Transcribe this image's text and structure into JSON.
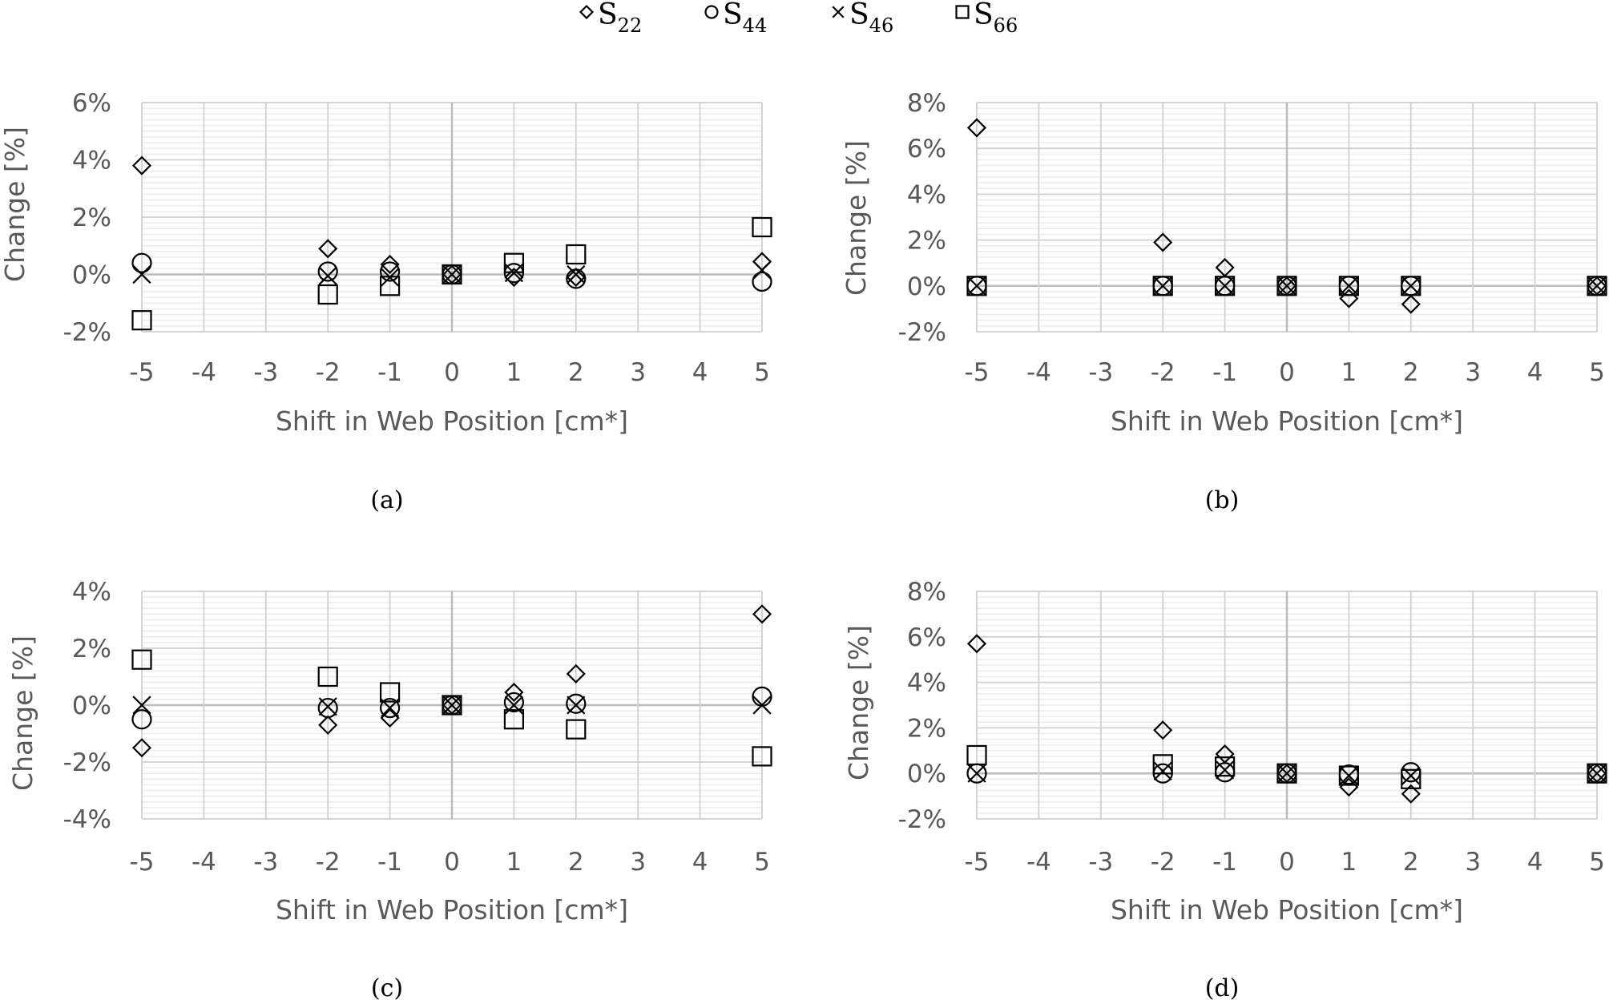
{
  "legend": [
    {
      "name": "S",
      "sub": "22",
      "marker": "diamond"
    },
    {
      "name": "S",
      "sub": "44",
      "marker": "circle"
    },
    {
      "name": "S",
      "sub": "46",
      "marker": "cross"
    },
    {
      "name": "S",
      "sub": "66",
      "marker": "square"
    }
  ],
  "chart_data": [
    {
      "type": "scatter",
      "caption": "(a)",
      "xlabel": "Shift in Web Position [cm*]",
      "ylabel": "Change [%]",
      "xlim": [
        -5,
        5
      ],
      "xticks": [
        -5,
        -4,
        -3,
        -2,
        -1,
        0,
        1,
        2,
        3,
        4,
        5
      ],
      "ylim": [
        -2,
        6
      ],
      "yticks": [
        -2,
        0,
        2,
        4,
        6
      ],
      "ytick_labels": [
        "-2%",
        "0%",
        "2%",
        "4%",
        "6%"
      ],
      "x": [
        -5,
        -2,
        -1,
        0,
        1,
        2,
        5
      ],
      "series": [
        {
          "name": "S22",
          "marker": "diamond",
          "values": [
            3.8,
            0.9,
            0.35,
            0,
            -0.1,
            -0.1,
            0.45
          ]
        },
        {
          "name": "S44",
          "marker": "circle",
          "values": [
            0.4,
            0.1,
            0.1,
            0,
            0.05,
            -0.15,
            -0.25
          ]
        },
        {
          "name": "S46",
          "marker": "cross",
          "values": [
            0,
            -0.05,
            -0.1,
            0,
            0.05,
            0,
            0.15
          ]
        },
        {
          "name": "S66",
          "marker": "square",
          "values": [
            -1.6,
            -0.7,
            -0.4,
            0,
            0.4,
            0.7,
            1.65
          ]
        }
      ]
    },
    {
      "type": "scatter",
      "caption": "(b)",
      "xlabel": "Shift in Web Position [cm*]",
      "ylabel": "Change [%]",
      "xlim": [
        -5,
        5
      ],
      "xticks": [
        -5,
        -4,
        -3,
        -2,
        -1,
        0,
        1,
        2,
        3,
        4,
        5
      ],
      "ylim": [
        -2,
        8
      ],
      "yticks": [
        -2,
        0,
        2,
        4,
        6,
        8
      ],
      "ytick_labels": [
        "-2%",
        "0%",
        "2%",
        "4%",
        "6%",
        "8%"
      ],
      "x": [
        -5,
        -2,
        -1,
        0,
        1,
        2,
        5
      ],
      "series": [
        {
          "name": "S22",
          "marker": "diamond",
          "values": [
            6.9,
            1.9,
            0.8,
            0,
            -0.55,
            -0.8,
            0
          ]
        },
        {
          "name": "S44",
          "marker": "circle",
          "values": [
            0,
            0,
            0,
            0,
            0,
            0,
            0
          ]
        },
        {
          "name": "S46",
          "marker": "cross",
          "values": [
            0,
            0,
            0,
            0,
            0,
            0,
            0
          ]
        },
        {
          "name": "S66",
          "marker": "square",
          "values": [
            0,
            0,
            0,
            0,
            0,
            0,
            0
          ]
        }
      ]
    },
    {
      "type": "scatter",
      "caption": "(c)",
      "xlabel": "Shift in Web Position [cm*]",
      "ylabel": "Change [%]",
      "xlim": [
        -5,
        5
      ],
      "xticks": [
        -5,
        -4,
        -3,
        -2,
        -1,
        0,
        1,
        2,
        3,
        4,
        5
      ],
      "ylim": [
        -4,
        4
      ],
      "yticks": [
        -4,
        -2,
        0,
        2,
        4
      ],
      "ytick_labels": [
        "-4%",
        "-2%",
        "0%",
        "2%",
        "4%"
      ],
      "x": [
        -5,
        -2,
        -1,
        0,
        1,
        2,
        5
      ],
      "series": [
        {
          "name": "S22",
          "marker": "diamond",
          "values": [
            -1.5,
            -0.7,
            -0.45,
            0,
            0.45,
            1.1,
            3.2
          ]
        },
        {
          "name": "S44",
          "marker": "circle",
          "values": [
            -0.5,
            -0.1,
            -0.1,
            0,
            0.1,
            0.05,
            0.3
          ]
        },
        {
          "name": "S46",
          "marker": "cross",
          "values": [
            0,
            -0.05,
            -0.1,
            0,
            0,
            0,
            0
          ]
        },
        {
          "name": "S66",
          "marker": "square",
          "values": [
            1.6,
            1.0,
            0.45,
            0,
            -0.5,
            -0.85,
            -1.8
          ]
        }
      ]
    },
    {
      "type": "scatter",
      "caption": "(d)",
      "xlabel": "Shift in Web Position [cm*]",
      "ylabel": "Change [%]",
      "xlim": [
        -5,
        5
      ],
      "xticks": [
        -5,
        -4,
        -3,
        -2,
        -1,
        0,
        1,
        2,
        3,
        4,
        5
      ],
      "ylim": [
        -2,
        8
      ],
      "yticks": [
        -2,
        0,
        2,
        4,
        6,
        8
      ],
      "ytick_labels": [
        "-2%",
        "0%",
        "2%",
        "4%",
        "6%",
        "8%"
      ],
      "x": [
        -5,
        -2,
        -1,
        0,
        1,
        2,
        5
      ],
      "series": [
        {
          "name": "S22",
          "marker": "diamond",
          "values": [
            5.7,
            1.9,
            0.85,
            0,
            -0.6,
            -0.9,
            0
          ]
        },
        {
          "name": "S44",
          "marker": "circle",
          "values": [
            0,
            0,
            0.05,
            0,
            -0.05,
            0.05,
            0
          ]
        },
        {
          "name": "S46",
          "marker": "cross",
          "values": [
            0,
            0.1,
            0.15,
            0,
            -0.1,
            -0.1,
            0
          ]
        },
        {
          "name": "S66",
          "marker": "square",
          "values": [
            0.8,
            0.4,
            0.3,
            0,
            -0.1,
            -0.25,
            0
          ]
        }
      ]
    }
  ]
}
